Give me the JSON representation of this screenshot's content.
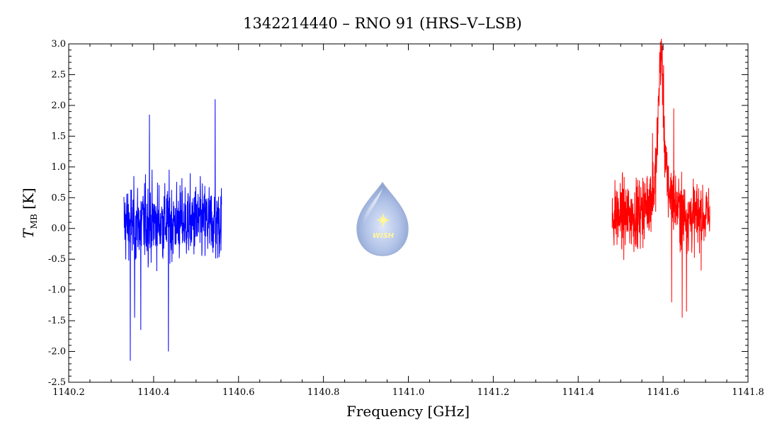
{
  "chart_data": {
    "type": "line",
    "title": "1342214440 – RNO 91 (HRS–V–LSB)",
    "xlabel": "Frequency [GHz]",
    "ylabel": "T",
    "ylabel_sub": "MB",
    "ylabel_unit": " [K]",
    "xlim": [
      1140.2,
      1141.8
    ],
    "ylim": [
      -2.5,
      3.0
    ],
    "x_ticks": [
      "1140.2",
      "1140.4",
      "1140.6",
      "1140.8",
      "1141.0",
      "1141.2",
      "1141.4",
      "1141.6",
      "1141.8"
    ],
    "y_ticks": [
      "-2.5",
      "-2.0",
      "-1.5",
      "-1.0",
      "-0.5",
      "0.0",
      "0.5",
      "1.0",
      "1.5",
      "2.0",
      "2.5",
      "3.0"
    ],
    "grid": false,
    "series": [
      {
        "color": "#0000ff",
        "x_range": [
          1140.33,
          1140.56
        ],
        "noise_rms": 0.5,
        "baseline": 0.1,
        "extremes": [
          {
            "x": 1140.345,
            "y": -2.15
          },
          {
            "x": 1140.435,
            "y": -2.0
          },
          {
            "x": 1140.545,
            "y": 2.1
          },
          {
            "x": 1140.39,
            "y": 1.85
          },
          {
            "x": 1140.37,
            "y": -1.65
          },
          {
            "x": 1140.355,
            "y": -1.45
          }
        ]
      },
      {
        "color": "#ff0000",
        "x_range": [
          1141.48,
          1141.71
        ],
        "noise_rms": 0.45,
        "baseline": 0.2,
        "line_center": 1141.595,
        "line_peak": 2.85,
        "line_width": 0.006,
        "extremes": [
          {
            "x": 1141.645,
            "y": -1.45
          },
          {
            "x": 1141.655,
            "y": -1.35
          },
          {
            "x": 1141.625,
            "y": 1.95
          },
          {
            "x": 1141.575,
            "y": 1.55
          },
          {
            "x": 1141.62,
            "y": -1.2
          }
        ]
      }
    ]
  },
  "logo": {
    "text": "WISH",
    "colors": {
      "drop_light": "#e8eefa",
      "drop_mid": "#b4c6ea",
      "drop_dark": "#7f97c9",
      "star": "#fff68a"
    }
  }
}
